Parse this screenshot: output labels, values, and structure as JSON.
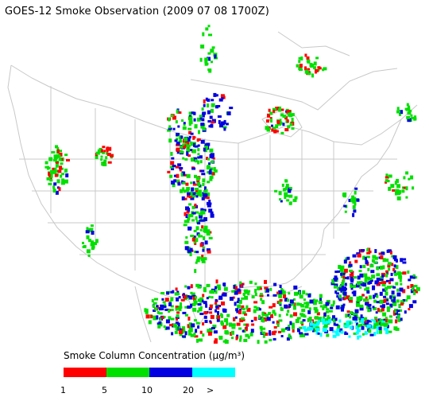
{
  "title": "GOES-12 Smoke Observation (2009 07 08  1700Z)",
  "legend": {
    "title": "Smoke Column Concentration (µg/m³)",
    "bins": [
      {
        "color": "#ff0000",
        "from": "1",
        "to": "5"
      },
      {
        "color": "#00e000",
        "from": "5",
        "to": "10"
      },
      {
        "color": "#0000e0",
        "from": "10",
        "to": "20"
      },
      {
        "color": "#00ffff",
        "from": "20",
        "to": ">"
      }
    ],
    "ticks": [
      "1",
      "5",
      "10",
      "20",
      ">"
    ]
  },
  "colors": {
    "state_lines": "#c8c8c8",
    "smoke_low": "#ff0000",
    "smoke_mid": "#00e000",
    "smoke_high": "#0000e0",
    "smoke_very_high": "#00ffff"
  }
}
